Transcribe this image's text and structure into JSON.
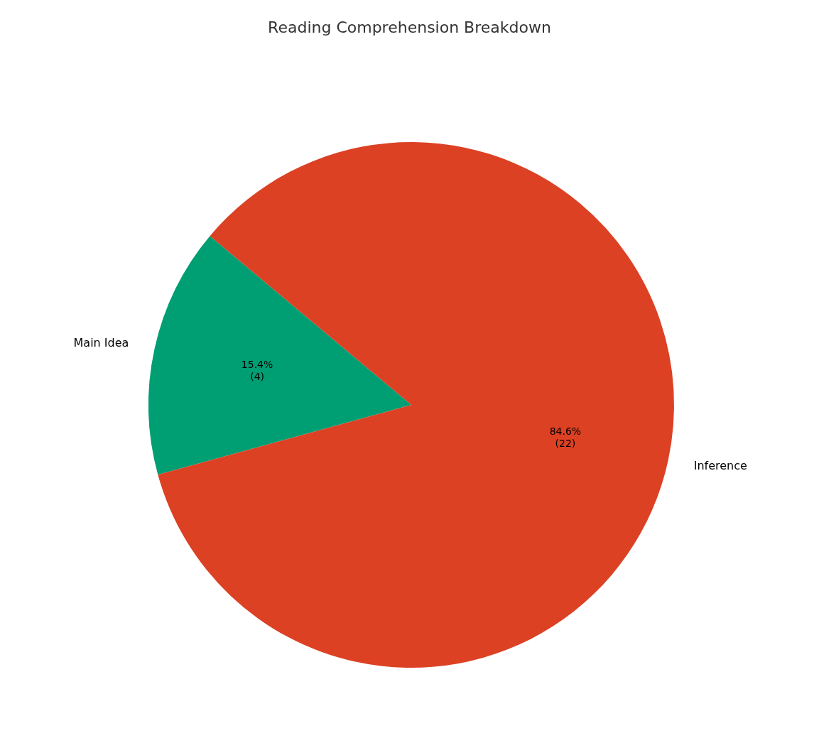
{
  "chart_data": {
    "type": "pie",
    "title": "Reading Comprehension Breakdown",
    "categories": [
      "Main Idea",
      "Inference"
    ],
    "values": [
      4,
      22
    ],
    "colors": [
      "#009e73",
      "#dc4124"
    ],
    "data_labels": true,
    "value_labels": [
      "15.4%\n(4)",
      "84.6%\n(22)"
    ]
  }
}
